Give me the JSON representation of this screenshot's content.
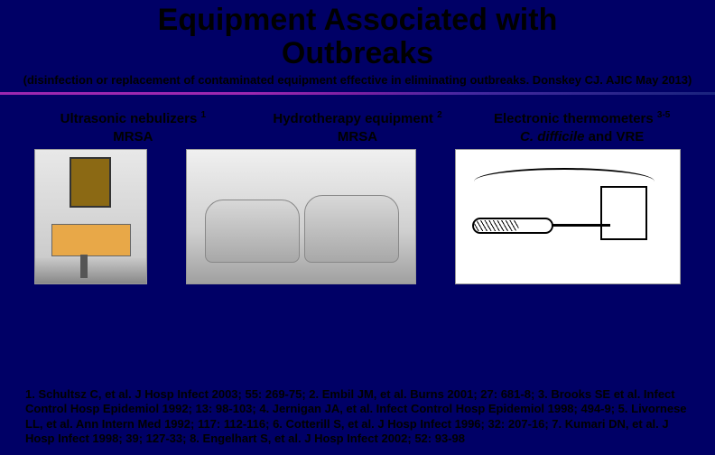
{
  "title_line1": "Equipment Associated with",
  "title_line2": "Outbreaks",
  "subtitle": "(disinfection or replacement of contaminated equipment effective in eliminating outbreaks.  Donskey CJ. AJIC May 2013)",
  "columns": [
    {
      "head": "Ultrasonic nebulizers",
      "sup": "1",
      "sub": "MRSA"
    },
    {
      "head": "Hydrotherapy equipment",
      "sup": "2",
      "sub": "MRSA"
    },
    {
      "head": "Electronic thermometers",
      "sup": "3-5",
      "sub_pre": "C. difficile",
      "sub_post": " and VRE"
    }
  ],
  "references": "1. Schultsz C, et al. J Hosp Infect 2003; 55: 269-75; 2. Embil JM, et al. Burns 2001; 27: 681-8; 3. Brooks SE et al. Infect Control Hosp Epidemiol 1992; 13: 98-103; 4. Jernigan JA, et al. Infect Control Hosp Epidemiol 1998; 494-9; 5. Livornese LL, et al. Ann Intern Med 1992; 117: 112-116; 6. Cotterill S, et al. J Hosp Infect 1996; 32: 207-16; 7. Kumari DN, et al. J Hosp Infect 1998; 39; 127-33; 8. Engelhart S, et al. J Hosp Infect 2002; 52: 93-98"
}
